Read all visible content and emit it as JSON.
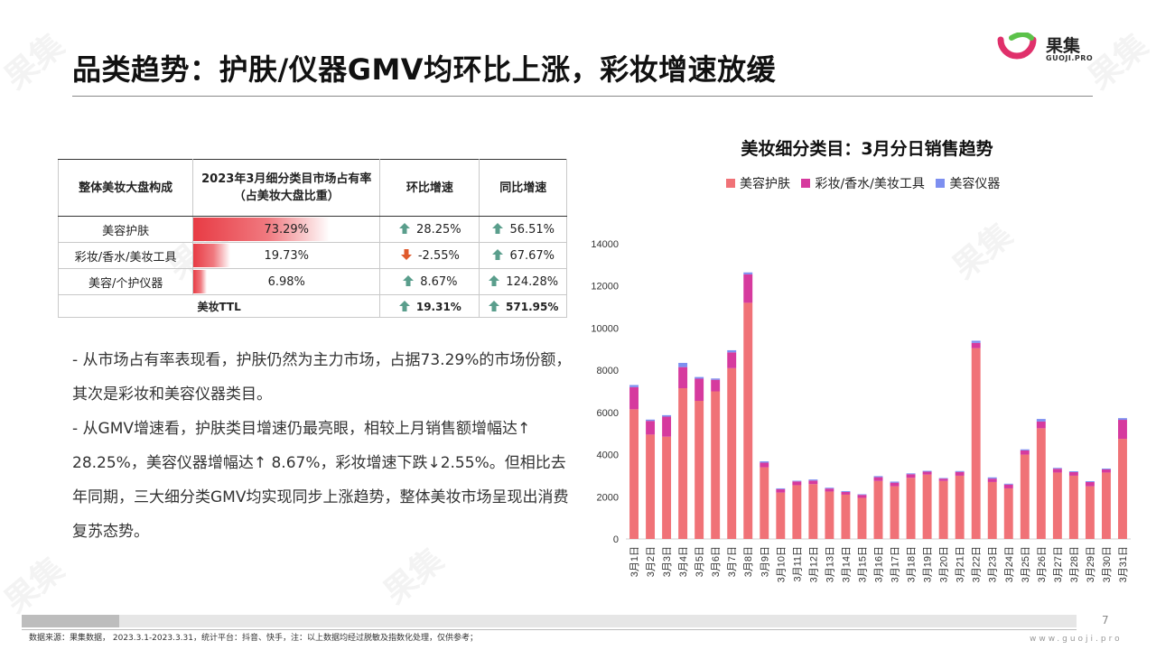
{
  "page": {
    "title": "品类趋势：护肤/仪器GMV均环比上涨，彩妆增速放缓",
    "page_number": "7",
    "source": "数据来源：果集数据， 2023.3.1-2023.3.31，统计平台：抖音、快手，注：以上数据均经过脱敏及指数化处理，仅供参考；",
    "site": "www.guoji.pro"
  },
  "logo": {
    "name": "果集",
    "sub": "GUOJI.PRO",
    "watermark": "果集"
  },
  "table": {
    "headers": [
      "整体美妆大盘构成",
      "2023年3月细分类目市场占有率",
      "（占美妆大盘比重）",
      "环比增速",
      "同比增速"
    ],
    "rows": [
      {
        "name": "美容护肤",
        "share": "73.29%",
        "share_value": 73.29,
        "mom": "28.25%",
        "mom_dir": "up",
        "yoy": "56.51%",
        "yoy_dir": "up"
      },
      {
        "name": "彩妆/香水/美妆工具",
        "share": "19.73%",
        "share_value": 19.73,
        "mom": "-2.55%",
        "mom_dir": "down",
        "yoy": "67.67%",
        "yoy_dir": "up"
      },
      {
        "name": "美容/个护仪器",
        "share": "6.98%",
        "share_value": 6.98,
        "mom": "8.67%",
        "mom_dir": "up",
        "yoy": "124.28%",
        "yoy_dir": "up"
      }
    ],
    "total": {
      "name": "美妆TTL",
      "mom": "19.31%",
      "mom_dir": "up",
      "yoy": "571.95%",
      "yoy_dir": "up"
    }
  },
  "bullets": [
    "- 从市场占有率表现看，护肤仍然为主力市场，占据73.29%的市场份额，其次是彩妆和美容仪器类目。",
    "- 从GMV增速看，护肤类目增速仍最亮眼，相较上月销售额增幅达↑ 28.25%，美容仪器增幅达↑ 8.67%，彩妆增速下跌↓2.55%。但相比去年同期，三大细分类GMV均实现同步上涨趋势，整体美妆市场呈现出消费复苏态势。"
  ],
  "colors": {
    "skincare": "#f07277",
    "makeup": "#d63a9e",
    "device": "#7d8ff0",
    "accent": "#e83b44",
    "up_arrow": "#5a9e8c",
    "down_arrow": "#e05a2c"
  },
  "chart_data": {
    "type": "bar",
    "stacked": true,
    "title": "美妆细分类目：3月分日销售趋势",
    "legend_position": "top",
    "ylim": [
      0,
      14000
    ],
    "yticks": [
      0,
      2000,
      4000,
      6000,
      8000,
      10000,
      12000,
      14000
    ],
    "categories": [
      "3月1日",
      "3月2日",
      "3月3日",
      "3月4日",
      "3月5日",
      "3月6日",
      "3月7日",
      "3月8日",
      "3月9日",
      "3月10日",
      "3月11日",
      "3月12日",
      "3月13日",
      "3月14日",
      "3月15日",
      "3月16日",
      "3月17日",
      "3月18日",
      "3月19日",
      "3月20日",
      "3月21日",
      "3月22日",
      "3月23日",
      "3月24日",
      "3月25日",
      "3月26日",
      "3月27日",
      "3月28日",
      "3月29日",
      "3月30日",
      "3月31日"
    ],
    "series": [
      {
        "name": "美容护肤",
        "values": [
          6150,
          4950,
          4850,
          7150,
          6550,
          7000,
          8100,
          11200,
          3400,
          2200,
          2550,
          2600,
          2250,
          2100,
          1950,
          2750,
          2500,
          2900,
          3050,
          2750,
          3000,
          9050,
          2700,
          2400,
          4000,
          5250,
          3150,
          3000,
          2500,
          3150,
          4750
        ]
      },
      {
        "name": "彩妆/香水/美妆工具",
        "values": [
          1050,
          650,
          950,
          1000,
          1050,
          550,
          750,
          1350,
          220,
          160,
          180,
          170,
          140,
          130,
          140,
          180,
          170,
          170,
          140,
          110,
          180,
          250,
          160,
          180,
          200,
          320,
          180,
          170,
          200,
          150,
          900
        ]
      },
      {
        "name": "美容仪器",
        "values": [
          100,
          60,
          70,
          200,
          80,
          60,
          100,
          90,
          60,
          40,
          30,
          50,
          40,
          40,
          30,
          50,
          50,
          40,
          40,
          30,
          40,
          100,
          60,
          40,
          50,
          120,
          40,
          40,
          40,
          40,
          80
        ]
      }
    ]
  }
}
